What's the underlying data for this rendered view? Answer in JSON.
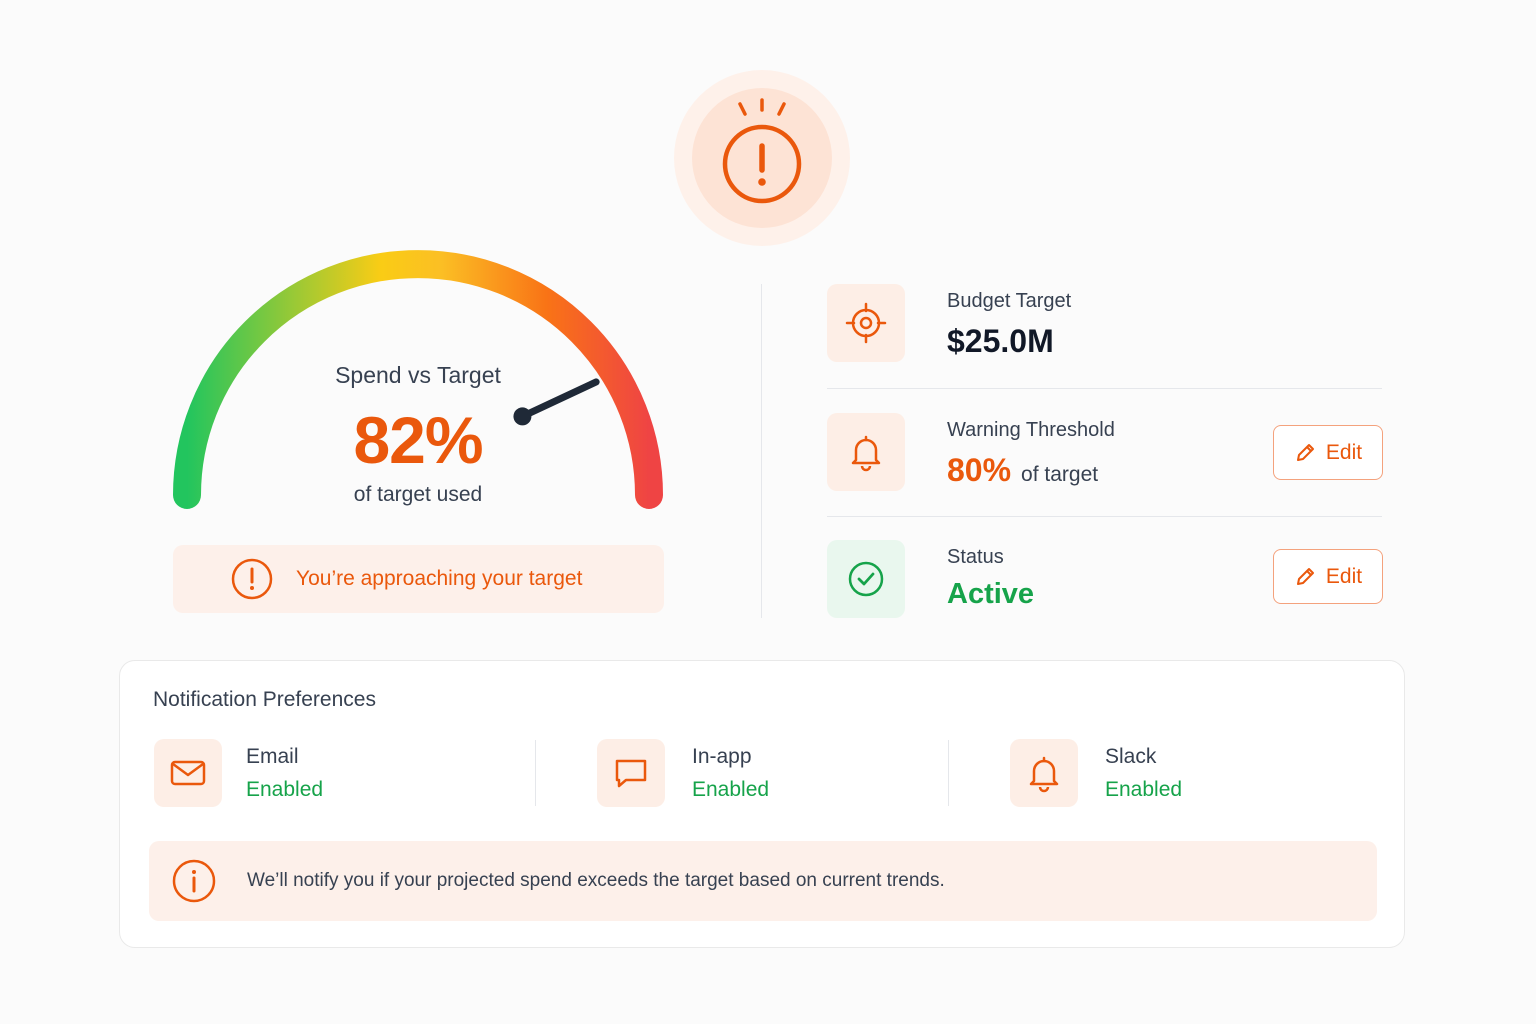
{
  "alert_icon": "alert-circle-icon",
  "gauge": {
    "title": "Spend vs Target",
    "value_label": "82%",
    "value": 82,
    "subtitle": "of target used",
    "colors": [
      "#22c55e",
      "#facc15",
      "#f97316",
      "#ef4444"
    ]
  },
  "banner": {
    "icon": "alert-circle-icon",
    "text": "You’re approaching your target"
  },
  "budget": {
    "label": "Budget Target",
    "value": "$25.0M",
    "icon": "target-icon"
  },
  "warning": {
    "label": "Warning Threshold",
    "value": "80%",
    "suffix": "of target",
    "icon": "bell-icon",
    "edit_label": "Edit"
  },
  "status": {
    "label": "Status",
    "value": "Active",
    "icon": "check-circle-icon",
    "edit_label": "Edit"
  },
  "notifications": {
    "title": "Notification Preferences",
    "channels": [
      {
        "name": "Email",
        "status": "Enabled",
        "icon": "mail-icon"
      },
      {
        "name": "In-app",
        "status": "Enabled",
        "icon": "chat-icon"
      },
      {
        "name": "Slack",
        "status": "Enabled",
        "icon": "bell-icon"
      }
    ],
    "info": "We’ll notify you if your projected spend exceeds the target based on current trends."
  },
  "theme": {
    "accent": "#ea580c",
    "success": "#16a34a"
  }
}
